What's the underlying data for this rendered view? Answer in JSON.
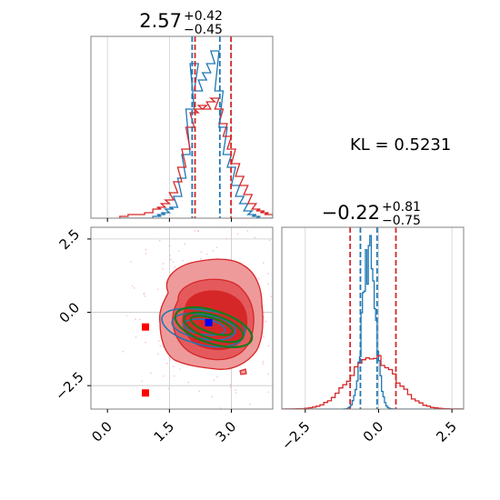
{
  "chart_data": [
    {
      "type": "histogram",
      "panel": "marginal-x",
      "title": {
        "main": "2.57",
        "sup": "+0.42",
        "sub": "−0.45"
      },
      "xlim": [
        -0.4,
        4.0
      ],
      "bin_centers": [
        0.4,
        0.6,
        0.8,
        1.0,
        1.2,
        1.3,
        1.4,
        1.5,
        1.6,
        1.7,
        1.8,
        1.9,
        2.0,
        2.1,
        2.2,
        2.3,
        2.4,
        2.5,
        2.6,
        2.7,
        2.8,
        2.9,
        3.0,
        3.1,
        3.2,
        3.3,
        3.4,
        3.5,
        3.6,
        3.7,
        3.8,
        3.9
      ],
      "series": [
        {
          "color": "#1f77b4",
          "values": [
            0,
            0,
            0,
            0,
            0.01,
            0.02,
            0.03,
            0.05,
            0.06,
            0.12,
            0.22,
            0.35,
            0.6,
            0.85,
            0.7,
            0.76,
            0.8,
            0.85,
            0.92,
            0.7,
            0.5,
            0.35,
            0.28,
            0.18,
            0.12,
            0.08,
            0.04,
            0.02,
            0.01,
            0,
            0,
            0
          ]
        },
        {
          "color": "#d62728",
          "values": [
            0.01,
            0.02,
            0.02,
            0.03,
            0.05,
            0.06,
            0.08,
            0.1,
            0.14,
            0.2,
            0.28,
            0.38,
            0.5,
            0.58,
            0.6,
            0.62,
            0.6,
            0.64,
            0.66,
            0.6,
            0.52,
            0.45,
            0.38,
            0.3,
            0.23,
            0.18,
            0.13,
            0.08,
            0.05,
            0.04,
            0.03,
            0.02
          ]
        }
      ],
      "quantile_lines": [
        {
          "x": 2.05,
          "color": "#1f77b4"
        },
        {
          "x": 2.12,
          "color": "#d62728"
        },
        {
          "x": 2.72,
          "color": "#1f77b4"
        },
        {
          "x": 2.99,
          "color": "#d62728"
        }
      ]
    },
    {
      "type": "contour",
      "panel": "joint",
      "xlim": [
        -0.4,
        4.0
      ],
      "ylim": [
        -3.3,
        2.9
      ],
      "xticks": [
        "0.0",
        "1.5",
        "3.0"
      ],
      "yticks": [
        "2.5",
        "0.0",
        "−2.5"
      ],
      "xtick_values": [
        0.0,
        1.5,
        3.0
      ],
      "ytick_values": [
        2.5,
        0.0,
        -2.5
      ],
      "blue_marker": {
        "x": 2.45,
        "y": -0.35
      },
      "red_markers": [
        {
          "x": 0.92,
          "y": -0.5
        },
        {
          "x": 0.92,
          "y": -2.75
        }
      ],
      "hlines": [
        0.0,
        -2.5
      ],
      "vlines": [
        1.5,
        3.0
      ]
    },
    {
      "type": "histogram",
      "panel": "marginal-y",
      "title": {
        "main": "−0.22",
        "sup": "+0.81",
        "sub": "−0.75"
      },
      "xlim": [
        -3.3,
        2.9
      ],
      "xticks": [
        "−2.5",
        "0.0",
        "2.5"
      ],
      "xtick_values": [
        -2.5,
        0.0,
        2.5
      ],
      "quantile_lines": [
        {
          "x": -0.97,
          "color": "#d62728"
        },
        {
          "x": -0.62,
          "color": "#1f77b4"
        },
        {
          "x": -0.05,
          "color": "#1f77b4"
        },
        {
          "x": 0.59,
          "color": "#d62728"
        }
      ]
    }
  ],
  "annotation": {
    "kl_text": "KL = 0.5231"
  }
}
